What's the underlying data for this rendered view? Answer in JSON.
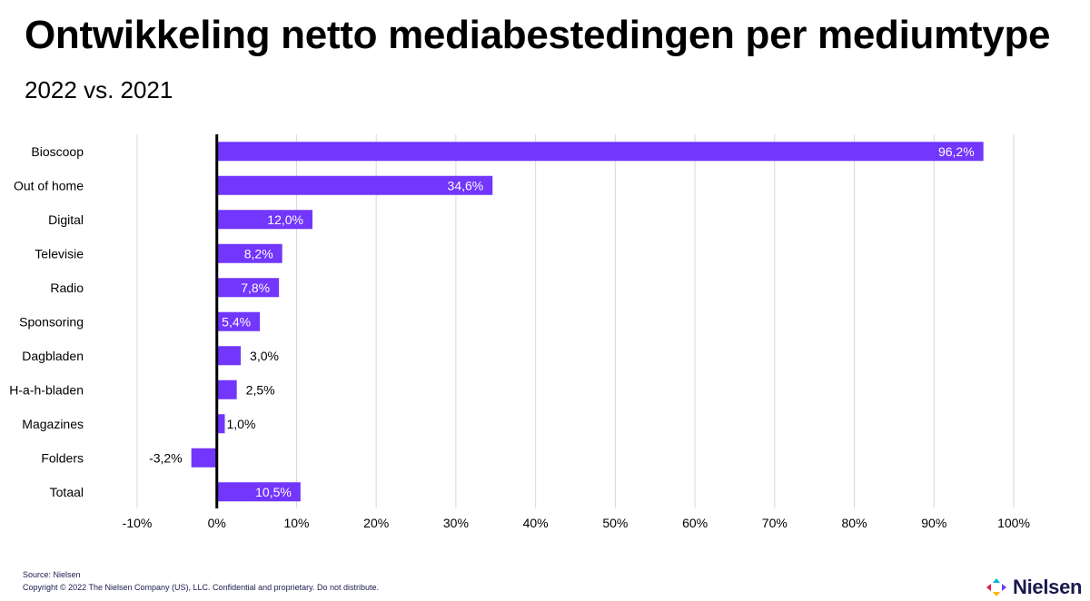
{
  "title": "Ontwikkeling netto mediabestedingen per mediumtype",
  "subtitle": "2022 vs. 2021",
  "footer": {
    "source": "Source: Nielsen",
    "copyright": "Copyright © 2022 The Nielsen Company (US), LLC. Confidential and proprietary. Do not distribute."
  },
  "logo": {
    "text": "Nielsen",
    "icon": "nielsen-arrows-icon"
  },
  "colors": {
    "bar": "#7236fc",
    "grid": "#d9d9d9",
    "zero_line": "#000000",
    "footer_text": "#1a1a4e"
  },
  "chart_data": {
    "type": "bar",
    "orientation": "horizontal",
    "categories": [
      "Bioscoop",
      "Out of home",
      "Digital",
      "Televisie",
      "Radio",
      "Sponsoring",
      "Dagbladen",
      "H-a-h-bladen",
      "Magazines",
      "Folders",
      "Totaal"
    ],
    "values": [
      96.2,
      34.6,
      12.0,
      8.2,
      7.8,
      5.4,
      3.0,
      2.5,
      1.0,
      -3.2,
      10.5
    ],
    "data_labels": [
      "96,2%",
      "34,6%",
      "12,0%",
      "8,2%",
      "7,8%",
      "5,4%",
      "3,0%",
      "2,5%",
      "1,0%",
      "-3,2%",
      "10,5%"
    ],
    "label_inside": [
      true,
      true,
      true,
      true,
      true,
      true,
      false,
      false,
      false,
      false,
      true
    ],
    "xlim": [
      -10,
      100
    ],
    "xticks": [
      -10,
      0,
      10,
      20,
      30,
      40,
      50,
      60,
      70,
      80,
      90,
      100
    ],
    "xtick_labels": [
      "-10%",
      "0%",
      "10%",
      "20%",
      "30%",
      "40%",
      "50%",
      "60%",
      "70%",
      "80%",
      "90%",
      "100%"
    ],
    "grid": true,
    "legend": "none"
  }
}
